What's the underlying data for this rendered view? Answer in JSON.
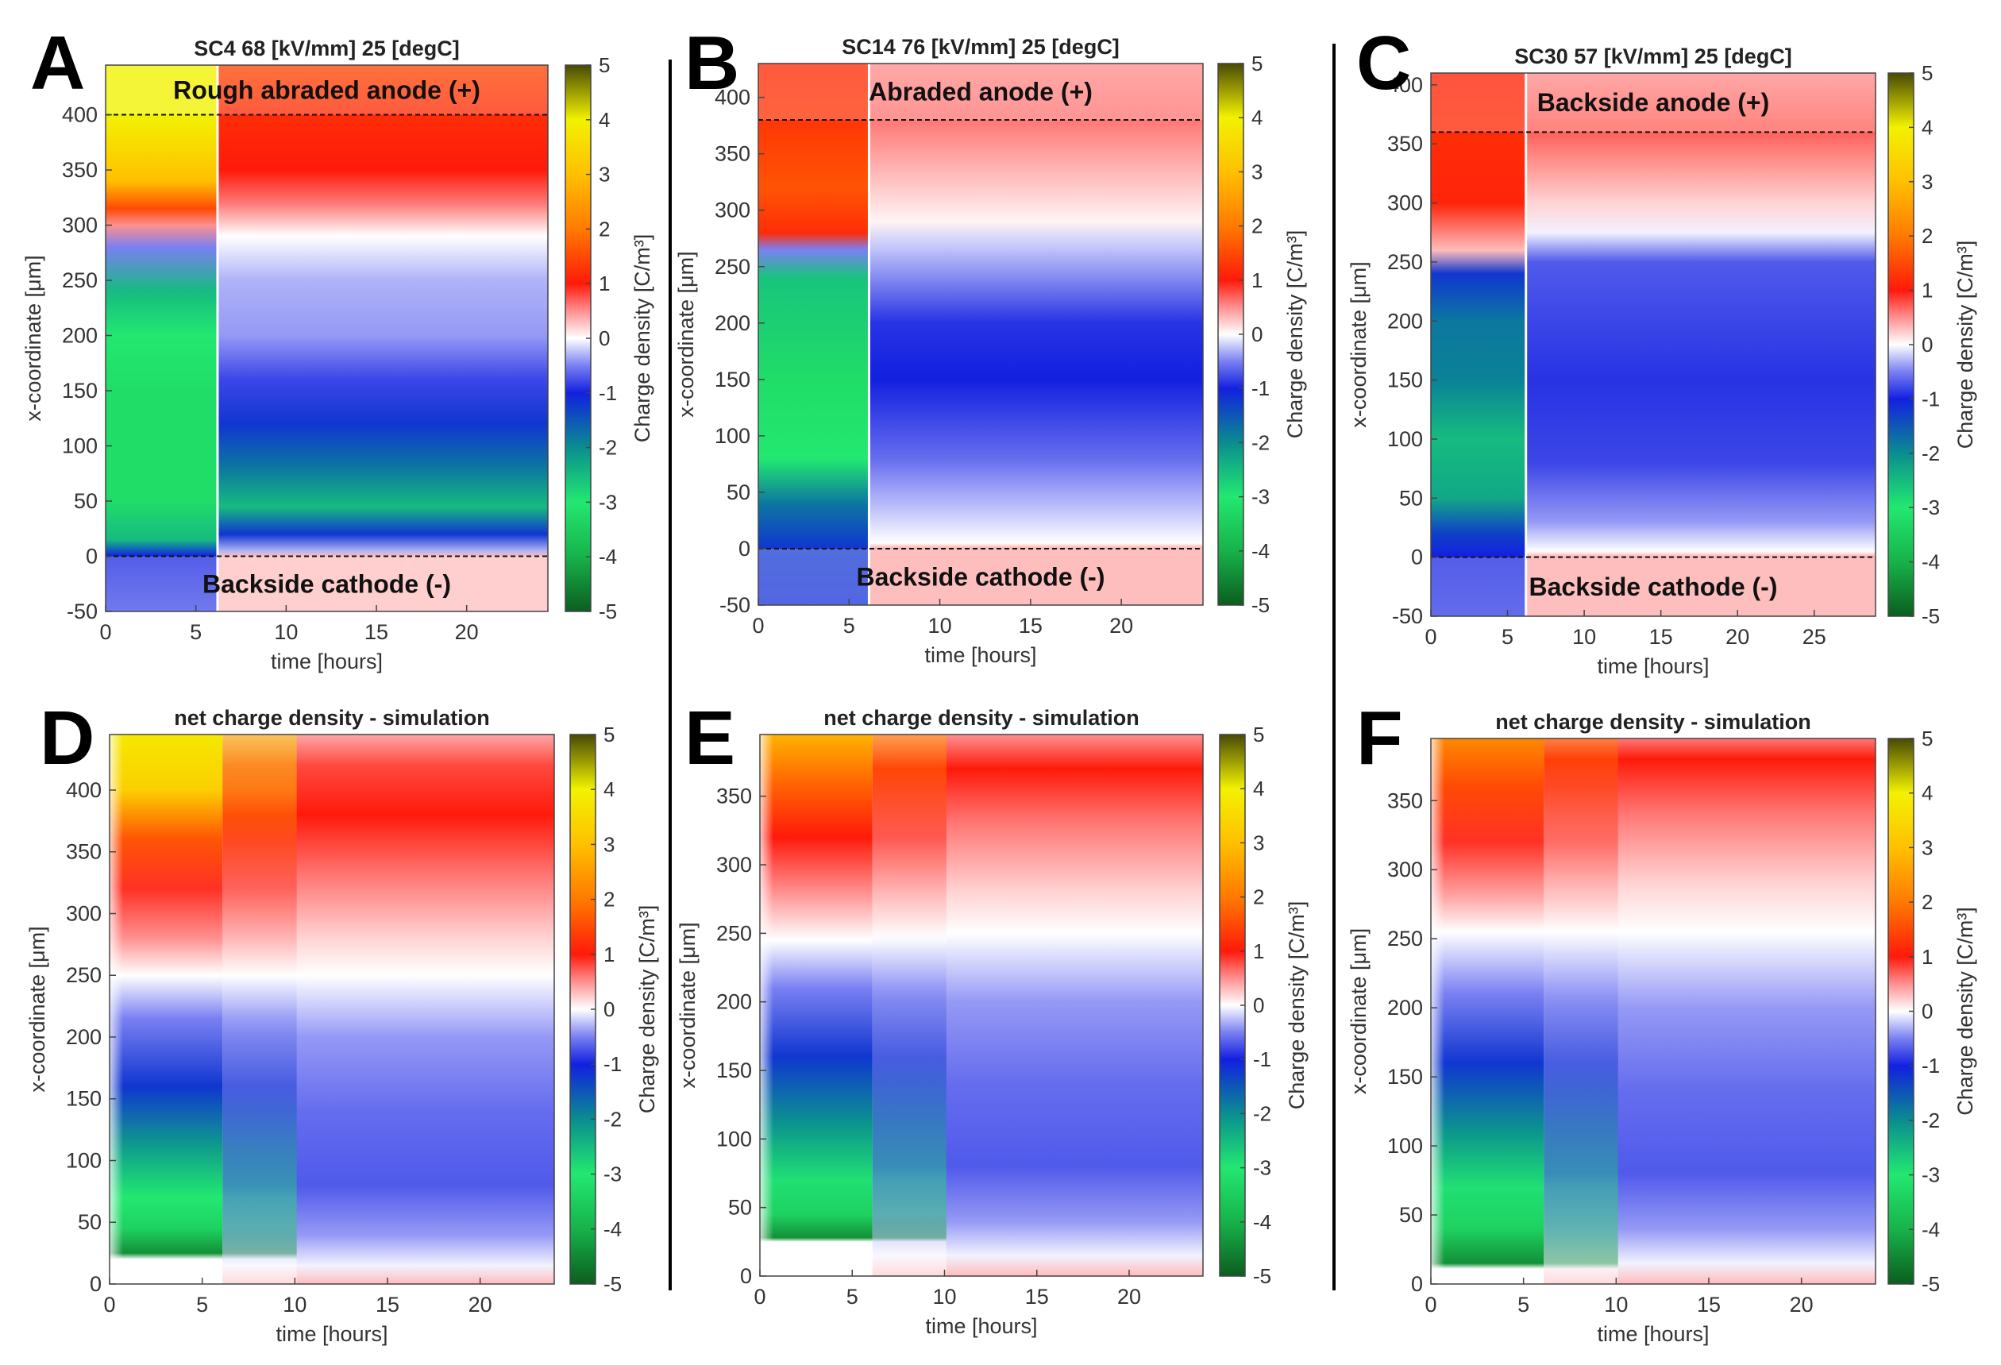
{
  "figure": {
    "separators": true,
    "colormap": {
      "name": "charge-density-diverging",
      "stops": [
        {
          "v": -5,
          "color": "#0b5e1e"
        },
        {
          "v": -4,
          "color": "#17b24a"
        },
        {
          "v": -3,
          "color": "#22e870"
        },
        {
          "v": -2,
          "color": "#0a8d8f"
        },
        {
          "v": -1,
          "color": "#1220e0"
        },
        {
          "v": -0.5,
          "color": "#7a80f2"
        },
        {
          "v": 0,
          "color": "#ffffff"
        },
        {
          "v": 0.5,
          "color": "#ff9090"
        },
        {
          "v": 1,
          "color": "#ff1a0a"
        },
        {
          "v": 2,
          "color": "#ff7a00"
        },
        {
          "v": 3,
          "color": "#ffc000"
        },
        {
          "v": 4,
          "color": "#f2f200"
        },
        {
          "v": 5,
          "color": "#484a05"
        }
      ]
    }
  },
  "chart_data": [
    {
      "panel": "A",
      "type": "heatmap",
      "title": "SC4 68 [kV/mm] 25 [degC]",
      "xlabel": "time [hours]",
      "ylabel": "x-coordinate [μm]",
      "colorbar_label": "Charge density [C/m³]",
      "xlim": [
        0,
        24.5
      ],
      "ylim": [
        -50,
        445
      ],
      "xticks": [
        0,
        5,
        10,
        15,
        20
      ],
      "yticks": [
        -50,
        0,
        50,
        100,
        150,
        200,
        250,
        300,
        350,
        400
      ],
      "clim": [
        -5,
        5
      ],
      "cticks": [
        -5,
        -4,
        -3,
        -2,
        -1,
        0,
        1,
        2,
        3,
        4,
        5
      ],
      "switch_time": 6.2,
      "electrode_lines": [
        0,
        400
      ],
      "annotations": [
        {
          "text": "Rough abraded anode (+)",
          "region": "top"
        },
        {
          "text": "Backside cathode (-)",
          "region": "bottom"
        }
      ],
      "simulation": false,
      "profile_on": [
        {
          "y": 445,
          "v": 4
        },
        {
          "y": 400,
          "v": 4
        },
        {
          "y": 340,
          "v": 3
        },
        {
          "y": 315,
          "v": 1.5
        },
        {
          "y": 300,
          "v": 0.5
        },
        {
          "y": 280,
          "v": -0.5
        },
        {
          "y": 240,
          "v": -2.5
        },
        {
          "y": 200,
          "v": -3
        },
        {
          "y": 150,
          "v": -3.2
        },
        {
          "y": 100,
          "v": -3.2
        },
        {
          "y": 50,
          "v": -3.2
        },
        {
          "y": 15,
          "v": -2.5
        },
        {
          "y": 0,
          "v": -1
        },
        {
          "y": -50,
          "v": -0.8
        }
      ],
      "profile_off": [
        {
          "y": 445,
          "v": 1.5
        },
        {
          "y": 400,
          "v": 1.2
        },
        {
          "y": 350,
          "v": 1
        },
        {
          "y": 320,
          "v": 0.6
        },
        {
          "y": 290,
          "v": 0
        },
        {
          "y": 250,
          "v": -0.3
        },
        {
          "y": 200,
          "v": -0.4
        },
        {
          "y": 160,
          "v": -0.8
        },
        {
          "y": 120,
          "v": -1.2
        },
        {
          "y": 80,
          "v": -1.8
        },
        {
          "y": 45,
          "v": -2.5
        },
        {
          "y": 20,
          "v": -1.2
        },
        {
          "y": 5,
          "v": -0.3
        },
        {
          "y": 0,
          "v": 0.3
        },
        {
          "y": -50,
          "v": 0.3
        }
      ]
    },
    {
      "panel": "B",
      "type": "heatmap",
      "title": "SC14 76 [kV/mm] 25 [degC]",
      "xlabel": "time [hours]",
      "ylabel": "x-coordinate [μm]",
      "colorbar_label": "Charge density [C/m³]",
      "xlim": [
        0,
        24.5
      ],
      "ylim": [
        -50,
        430
      ],
      "xticks": [
        0,
        5,
        10,
        15,
        20
      ],
      "yticks": [
        -50,
        0,
        50,
        100,
        150,
        200,
        250,
        300,
        350,
        400
      ],
      "clim": [
        -5,
        5
      ],
      "cticks": [
        -5,
        -4,
        -3,
        -2,
        -1,
        0,
        1,
        2,
        3,
        4,
        5
      ],
      "switch_time": 6.1,
      "electrode_lines": [
        0,
        380
      ],
      "annotations": [
        {
          "text": "Abraded anode (+)",
          "region": "top"
        },
        {
          "text": "Backside cathode (-)",
          "region": "bottom"
        }
      ],
      "simulation": false,
      "profile_on": [
        {
          "y": 430,
          "v": 1.2
        },
        {
          "y": 380,
          "v": 1.3
        },
        {
          "y": 320,
          "v": 1.6
        },
        {
          "y": 280,
          "v": 1.2
        },
        {
          "y": 265,
          "v": -0.5
        },
        {
          "y": 240,
          "v": -2.6
        },
        {
          "y": 150,
          "v": -3.2
        },
        {
          "y": 80,
          "v": -3
        },
        {
          "y": 40,
          "v": -1.8
        },
        {
          "y": 0,
          "v": -1.2
        },
        {
          "y": -50,
          "v": -1.1
        }
      ],
      "profile_off": [
        {
          "y": 430,
          "v": 0.5
        },
        {
          "y": 380,
          "v": 0.6
        },
        {
          "y": 330,
          "v": 0.3
        },
        {
          "y": 290,
          "v": 0.05
        },
        {
          "y": 270,
          "v": -0.2
        },
        {
          "y": 200,
          "v": -0.9
        },
        {
          "y": 150,
          "v": -1
        },
        {
          "y": 80,
          "v": -0.6
        },
        {
          "y": 30,
          "v": -0.2
        },
        {
          "y": 5,
          "v": 0
        },
        {
          "y": 0,
          "v": 0.4
        },
        {
          "y": -50,
          "v": 0.4
        }
      ]
    },
    {
      "panel": "C",
      "type": "heatmap",
      "title": "SC30 57 [kV/mm] 25 [degC]",
      "xlabel": "time [hours]",
      "ylabel": "x-coordinate [μm]",
      "colorbar_label": "Charge density [C/m³]",
      "xlim": [
        0,
        29
      ],
      "ylim": [
        -50,
        410
      ],
      "xticks": [
        0,
        5,
        10,
        15,
        20,
        25
      ],
      "yticks": [
        -50,
        0,
        50,
        100,
        150,
        200,
        250,
        300,
        350,
        400
      ],
      "clim": [
        -5,
        5
      ],
      "cticks": [
        -5,
        -4,
        -3,
        -2,
        -1,
        0,
        1,
        2,
        3,
        4,
        5
      ],
      "switch_time": 6.2,
      "electrode_lines": [
        0,
        360
      ],
      "annotations": [
        {
          "text": "Backside anode (+)",
          "region": "top"
        },
        {
          "text": "Backside cathode (-)",
          "region": "bottom"
        }
      ],
      "simulation": false,
      "profile_on": [
        {
          "y": 410,
          "v": 1.1
        },
        {
          "y": 360,
          "v": 1.2
        },
        {
          "y": 300,
          "v": 1.1
        },
        {
          "y": 260,
          "v": 0.3
        },
        {
          "y": 240,
          "v": -1.2
        },
        {
          "y": 200,
          "v": -1.8
        },
        {
          "y": 150,
          "v": -1.9
        },
        {
          "y": 100,
          "v": -2.5
        },
        {
          "y": 50,
          "v": -2.3
        },
        {
          "y": 20,
          "v": -1.3
        },
        {
          "y": 0,
          "v": -1
        },
        {
          "y": -50,
          "v": -0.9
        }
      ],
      "profile_off": [
        {
          "y": 410,
          "v": 0.5
        },
        {
          "y": 360,
          "v": 0.7
        },
        {
          "y": 300,
          "v": 0.2
        },
        {
          "y": 275,
          "v": -0.05
        },
        {
          "y": 250,
          "v": -0.7
        },
        {
          "y": 150,
          "v": -0.9
        },
        {
          "y": 80,
          "v": -0.8
        },
        {
          "y": 30,
          "v": -0.4
        },
        {
          "y": 5,
          "v": 0
        },
        {
          "y": 0,
          "v": 0.4
        },
        {
          "y": -50,
          "v": 0.4
        }
      ]
    },
    {
      "panel": "D",
      "type": "heatmap",
      "title": "net charge density - simulation",
      "xlabel": "time [hours]",
      "ylabel": "x-coordinate [μm]",
      "colorbar_label": "Charge density [C/m³]",
      "xlim": [
        0,
        24
      ],
      "ylim": [
        0,
        445
      ],
      "xticks": [
        0,
        5,
        10,
        15,
        20
      ],
      "yticks": [
        0,
        50,
        100,
        150,
        200,
        250,
        300,
        350,
        400
      ],
      "clim": [
        -5,
        5
      ],
      "cticks": [
        -5,
        -4,
        -3,
        -2,
        -1,
        0,
        1,
        2,
        3,
        4,
        5
      ],
      "switch_time": 6.1,
      "electrode_lines": [],
      "annotations": [],
      "simulation": true,
      "profile_on": [
        {
          "y": 445,
          "v": 3.8
        },
        {
          "y": 400,
          "v": 3.3
        },
        {
          "y": 360,
          "v": 1.6
        },
        {
          "y": 320,
          "v": 0.9
        },
        {
          "y": 280,
          "v": 0.5
        },
        {
          "y": 250,
          "v": 0
        },
        {
          "y": 215,
          "v": -0.5
        },
        {
          "y": 160,
          "v": -1.2
        },
        {
          "y": 110,
          "v": -2.2
        },
        {
          "y": 70,
          "v": -3
        },
        {
          "y": 45,
          "v": -3.4
        },
        {
          "y": 25,
          "v": -4.4
        },
        {
          "y": 20,
          "v": 0
        },
        {
          "y": 0,
          "v": 0
        }
      ],
      "profile_off": [
        {
          "y": 445,
          "v": 0.4
        },
        {
          "y": 420,
          "v": 0.8
        },
        {
          "y": 380,
          "v": 1
        },
        {
          "y": 330,
          "v": 0.6
        },
        {
          "y": 280,
          "v": 0.2
        },
        {
          "y": 250,
          "v": 0
        },
        {
          "y": 200,
          "v": -0.4
        },
        {
          "y": 140,
          "v": -0.6
        },
        {
          "y": 80,
          "v": -0.7
        },
        {
          "y": 40,
          "v": -0.4
        },
        {
          "y": 15,
          "v": -0.05
        },
        {
          "y": 0,
          "v": 0.3
        }
      ]
    },
    {
      "panel": "E",
      "type": "heatmap",
      "title": "net charge density - simulation",
      "xlabel": "time [hours]",
      "ylabel": "x-coordinate [μm]",
      "colorbar_label": "Charge density [C/m³]",
      "xlim": [
        0,
        24
      ],
      "ylim": [
        0,
        395
      ],
      "xticks": [
        0,
        5,
        10,
        15,
        20
      ],
      "yticks": [
        0,
        50,
        100,
        150,
        200,
        250,
        300,
        350
      ],
      "clim": [
        -5,
        5
      ],
      "cticks": [
        -5,
        -4,
        -3,
        -2,
        -1,
        0,
        1,
        2,
        3,
        4,
        5
      ],
      "switch_time": 6.1,
      "electrode_lines": [],
      "annotations": [],
      "simulation": true,
      "profile_on": [
        {
          "y": 395,
          "v": 2.8
        },
        {
          "y": 360,
          "v": 1.8
        },
        {
          "y": 320,
          "v": 1
        },
        {
          "y": 280,
          "v": 0.5
        },
        {
          "y": 245,
          "v": 0
        },
        {
          "y": 210,
          "v": -0.5
        },
        {
          "y": 160,
          "v": -1.2
        },
        {
          "y": 110,
          "v": -2.1
        },
        {
          "y": 70,
          "v": -2.9
        },
        {
          "y": 45,
          "v": -3.4
        },
        {
          "y": 28,
          "v": -4.4
        },
        {
          "y": 25,
          "v": 0
        },
        {
          "y": 0,
          "v": 0
        }
      ],
      "profile_off": [
        {
          "y": 395,
          "v": 0.5
        },
        {
          "y": 370,
          "v": 1
        },
        {
          "y": 330,
          "v": 0.6
        },
        {
          "y": 280,
          "v": 0.2
        },
        {
          "y": 250,
          "v": 0
        },
        {
          "y": 200,
          "v": -0.4
        },
        {
          "y": 140,
          "v": -0.6
        },
        {
          "y": 80,
          "v": -0.7
        },
        {
          "y": 40,
          "v": -0.4
        },
        {
          "y": 15,
          "v": -0.05
        },
        {
          "y": 0,
          "v": 0.3
        }
      ]
    },
    {
      "panel": "F",
      "type": "heatmap",
      "title": "net charge density - simulation",
      "xlabel": "time [hours]",
      "ylabel": "x-coordinate [μm]",
      "colorbar_label": "Charge density [C/m³]",
      "xlim": [
        0,
        24
      ],
      "ylim": [
        0,
        395
      ],
      "xticks": [
        0,
        5,
        10,
        15,
        20
      ],
      "yticks": [
        0,
        50,
        100,
        150,
        200,
        250,
        300,
        350
      ],
      "clim": [
        -5,
        5
      ],
      "cticks": [
        -5,
        -4,
        -3,
        -2,
        -1,
        0,
        1,
        2,
        3,
        4,
        5
      ],
      "switch_time": 6.1,
      "electrode_lines": [],
      "annotations": [],
      "simulation": true,
      "profile_on": [
        {
          "y": 395,
          "v": 2.2
        },
        {
          "y": 360,
          "v": 1.5
        },
        {
          "y": 320,
          "v": 0.9
        },
        {
          "y": 280,
          "v": 0.4
        },
        {
          "y": 255,
          "v": 0
        },
        {
          "y": 210,
          "v": -0.5
        },
        {
          "y": 160,
          "v": -1.2
        },
        {
          "y": 110,
          "v": -2.1
        },
        {
          "y": 70,
          "v": -2.9
        },
        {
          "y": 40,
          "v": -3.4
        },
        {
          "y": 15,
          "v": -4.4
        },
        {
          "y": 11,
          "v": 0
        },
        {
          "y": 0,
          "v": 0
        }
      ],
      "profile_off": [
        {
          "y": 395,
          "v": 0.6
        },
        {
          "y": 380,
          "v": 1
        },
        {
          "y": 340,
          "v": 0.6
        },
        {
          "y": 290,
          "v": 0.2
        },
        {
          "y": 255,
          "v": 0
        },
        {
          "y": 200,
          "v": -0.4
        },
        {
          "y": 140,
          "v": -0.6
        },
        {
          "y": 80,
          "v": -0.7
        },
        {
          "y": 40,
          "v": -0.4
        },
        {
          "y": 15,
          "v": -0.05
        },
        {
          "y": 0,
          "v": 0.3
        }
      ]
    }
  ]
}
